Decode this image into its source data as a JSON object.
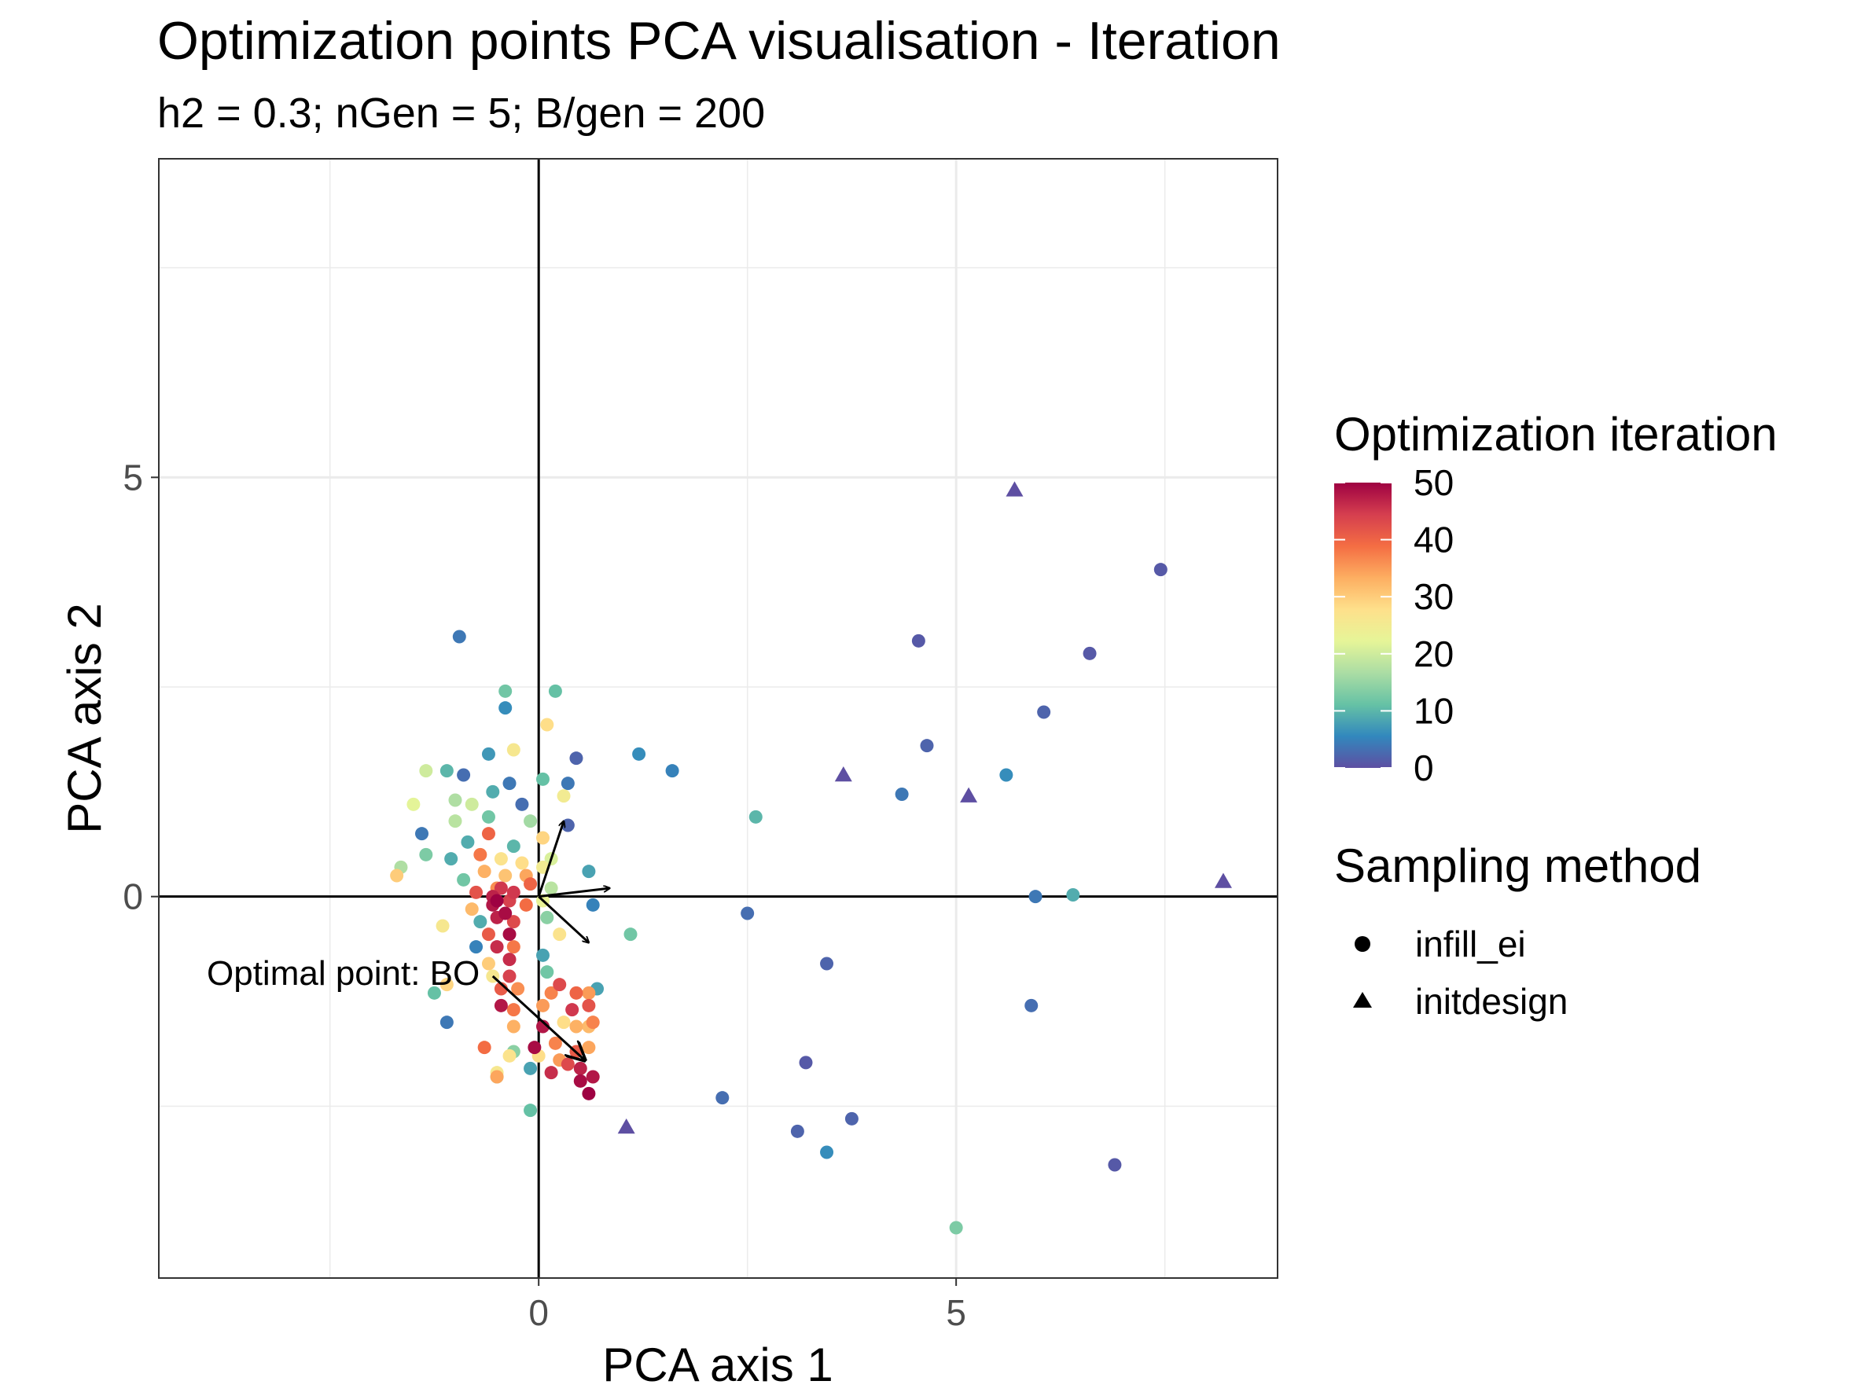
{
  "chart_data": {
    "type": "scatter",
    "title": "Optimization points PCA visualisation - Iteration",
    "subtitle": "h2 = 0.3; nGen = 5; B/gen = 200",
    "xlabel": "PCA axis 1",
    "ylabel": "PCA axis 2",
    "xlim": [
      -4.55,
      8.85
    ],
    "ylim": [
      -4.55,
      8.8
    ],
    "xticks": [
      0,
      5
    ],
    "yticks": [
      0,
      5
    ],
    "grid": true,
    "legend_position": "right",
    "annotation": "Optimal point: BO",
    "color_legend": {
      "title": "Optimization iteration",
      "ticks": [
        0,
        10,
        20,
        30,
        40,
        50
      ],
      "palette": [
        "#5E4FA2",
        "#3288BD",
        "#66C2A5",
        "#ABDDA4",
        "#E6F598",
        "#FEE08B",
        "#FDAE61",
        "#F46D43",
        "#D53E4F",
        "#9E0142"
      ]
    },
    "shape_legend": {
      "title": "Sampling method",
      "items": [
        {
          "label": "infill_ei",
          "shape": "circle"
        },
        {
          "label": "initdesign",
          "shape": "triangle"
        }
      ]
    },
    "initdesign_points": [
      [
        5.7,
        4.85,
        0
      ],
      [
        3.65,
        1.45,
        0
      ],
      [
        5.15,
        1.2,
        0
      ],
      [
        8.2,
        0.18,
        0
      ],
      [
        1.05,
        -2.75,
        0
      ]
    ],
    "infill_points": [
      [
        7.45,
        3.9,
        1
      ],
      [
        4.55,
        3.05,
        1
      ],
      [
        6.6,
        2.9,
        1
      ],
      [
        6.05,
        2.2,
        2
      ],
      [
        4.65,
        1.8,
        2
      ],
      [
        5.6,
        1.45,
        6
      ],
      [
        4.35,
        1.22,
        4
      ],
      [
        5.95,
        0.0,
        4
      ],
      [
        6.4,
        0.02,
        9
      ],
      [
        2.6,
        0.95,
        10
      ],
      [
        1.2,
        1.7,
        6
      ],
      [
        1.6,
        1.5,
        5
      ],
      [
        2.5,
        -0.2,
        3
      ],
      [
        3.45,
        -0.8,
        2
      ],
      [
        5.9,
        -1.3,
        3
      ],
      [
        3.2,
        -1.98,
        1
      ],
      [
        2.2,
        -2.4,
        3
      ],
      [
        3.1,
        -2.8,
        2
      ],
      [
        3.75,
        -2.65,
        2
      ],
      [
        3.45,
        -3.05,
        6
      ],
      [
        6.9,
        -3.2,
        1
      ],
      [
        5.0,
        -3.95,
        13
      ],
      [
        -0.95,
        3.1,
        4
      ],
      [
        -0.4,
        2.45,
        12
      ],
      [
        0.2,
        2.45,
        11
      ],
      [
        -0.4,
        2.25,
        6
      ],
      [
        0.1,
        2.05,
        28
      ],
      [
        -0.6,
        1.7,
        7
      ],
      [
        -0.3,
        1.75,
        26
      ],
      [
        0.45,
        1.65,
        2
      ],
      [
        -1.35,
        1.5,
        20
      ],
      [
        -1.1,
        1.5,
        10
      ],
      [
        -0.9,
        1.45,
        3
      ],
      [
        -0.35,
        1.35,
        4
      ],
      [
        0.05,
        1.4,
        11
      ],
      [
        0.35,
        1.35,
        4
      ],
      [
        -0.55,
        1.25,
        9
      ],
      [
        -1.5,
        1.1,
        22
      ],
      [
        -1.0,
        1.15,
        17
      ],
      [
        -0.8,
        1.1,
        20
      ],
      [
        -0.2,
        1.1,
        3
      ],
      [
        0.3,
        1.2,
        25
      ],
      [
        -1.4,
        0.75,
        4
      ],
      [
        -1.0,
        0.9,
        18
      ],
      [
        -0.6,
        0.95,
        12
      ],
      [
        -0.1,
        0.9,
        16
      ],
      [
        0.35,
        0.85,
        2
      ],
      [
        -0.85,
        0.65,
        9
      ],
      [
        -0.6,
        0.75,
        40
      ],
      [
        -0.3,
        0.6,
        10
      ],
      [
        0.05,
        0.7,
        29
      ],
      [
        -1.35,
        0.5,
        13
      ],
      [
        -1.65,
        0.35,
        17
      ],
      [
        -1.7,
        0.25,
        30
      ],
      [
        -1.05,
        0.45,
        9
      ],
      [
        -0.7,
        0.5,
        38
      ],
      [
        -0.45,
        0.45,
        27
      ],
      [
        -0.2,
        0.4,
        28
      ],
      [
        0.15,
        0.45,
        21
      ],
      [
        0.6,
        0.3,
        8
      ],
      [
        -0.9,
        0.2,
        12
      ],
      [
        -0.65,
        0.3,
        33
      ],
      [
        -0.4,
        0.25,
        31
      ],
      [
        -0.15,
        0.25,
        34
      ],
      [
        0.05,
        0.35,
        25
      ],
      [
        -0.75,
        0.05,
        42
      ],
      [
        -0.5,
        0.1,
        36
      ],
      [
        -0.3,
        0.05,
        45
      ],
      [
        -0.1,
        0.15,
        40
      ],
      [
        0.15,
        0.1,
        18
      ],
      [
        -0.8,
        -0.15,
        32
      ],
      [
        -0.55,
        -0.1,
        48
      ],
      [
        -0.35,
        -0.05,
        44
      ],
      [
        -0.15,
        -0.1,
        39
      ],
      [
        0.05,
        -0.05,
        23
      ],
      [
        -1.15,
        -0.35,
        26
      ],
      [
        -0.7,
        -0.3,
        9
      ],
      [
        -0.5,
        -0.25,
        47
      ],
      [
        -0.3,
        -0.3,
        43
      ],
      [
        0.1,
        -0.25,
        14
      ],
      [
        -0.6,
        -0.45,
        41
      ],
      [
        -0.35,
        -0.45,
        49
      ],
      [
        0.25,
        -0.45,
        27
      ],
      [
        0.65,
        -0.1,
        5
      ],
      [
        1.1,
        -0.45,
        12
      ],
      [
        -0.75,
        -0.6,
        5
      ],
      [
        -0.5,
        -0.6,
        46
      ],
      [
        -0.3,
        -0.6,
        38
      ],
      [
        0.05,
        -0.7,
        8
      ],
      [
        -0.6,
        -0.8,
        30
      ],
      [
        -0.35,
        -0.75,
        46
      ],
      [
        -0.55,
        -0.95,
        26
      ],
      [
        -0.35,
        -0.95,
        44
      ],
      [
        0.1,
        -0.9,
        12
      ],
      [
        -1.1,
        -1.05,
        29
      ],
      [
        -0.45,
        -1.1,
        41
      ],
      [
        -0.25,
        -1.1,
        36
      ],
      [
        0.15,
        -1.15,
        37
      ],
      [
        0.25,
        -1.05,
        43
      ],
      [
        0.45,
        -1.15,
        40
      ],
      [
        0.6,
        -1.15,
        35
      ],
      [
        0.7,
        -1.1,
        8
      ],
      [
        -1.25,
        -1.15,
        11
      ],
      [
        -0.45,
        -1.3,
        48
      ],
      [
        -0.3,
        -1.35,
        38
      ],
      [
        0.05,
        -1.3,
        35
      ],
      [
        0.4,
        -1.35,
        45
      ],
      [
        0.6,
        -1.3,
        42
      ],
      [
        -1.1,
        -1.5,
        4
      ],
      [
        -0.3,
        -1.55,
        33
      ],
      [
        0.05,
        -1.55,
        48
      ],
      [
        0.3,
        -1.5,
        28
      ],
      [
        0.45,
        -1.55,
        33
      ],
      [
        0.6,
        -1.55,
        32
      ],
      [
        0.65,
        -1.5,
        37
      ],
      [
        -0.65,
        -1.8,
        39
      ],
      [
        -0.3,
        -1.85,
        14
      ],
      [
        -0.05,
        -1.8,
        49
      ],
      [
        0.2,
        -1.75,
        37
      ],
      [
        0.45,
        -1.85,
        41
      ],
      [
        0.6,
        -1.8,
        34
      ],
      [
        -0.35,
        -1.9,
        27
      ],
      [
        0.0,
        -1.9,
        28
      ],
      [
        0.25,
        -1.95,
        35
      ],
      [
        0.35,
        -2.0,
        43
      ],
      [
        -0.5,
        -2.1,
        26
      ],
      [
        -0.1,
        -2.05,
        8
      ],
      [
        0.15,
        -2.1,
        46
      ],
      [
        0.5,
        -2.05,
        47
      ],
      [
        -0.5,
        -2.15,
        14
      ],
      [
        0.65,
        -2.15,
        48
      ],
      [
        -0.5,
        -2.15,
        34
      ],
      [
        -0.1,
        -2.55,
        11
      ],
      [
        0.5,
        -2.2,
        49
      ],
      [
        0.6,
        -2.35,
        50
      ],
      [
        -0.5,
        -0.05,
        50
      ],
      [
        -0.4,
        -0.2,
        49
      ],
      [
        -0.55,
        0.0,
        47
      ],
      [
        -0.45,
        0.1,
        45
      ]
    ],
    "arrows": [
      [
        0,
        0,
        0.3,
        0.9
      ],
      [
        0,
        0,
        0.85,
        0.1
      ],
      [
        0,
        0,
        0.6,
        -0.55
      ],
      [
        -0.55,
        -0.95,
        0.55,
        -1.95
      ]
    ]
  }
}
